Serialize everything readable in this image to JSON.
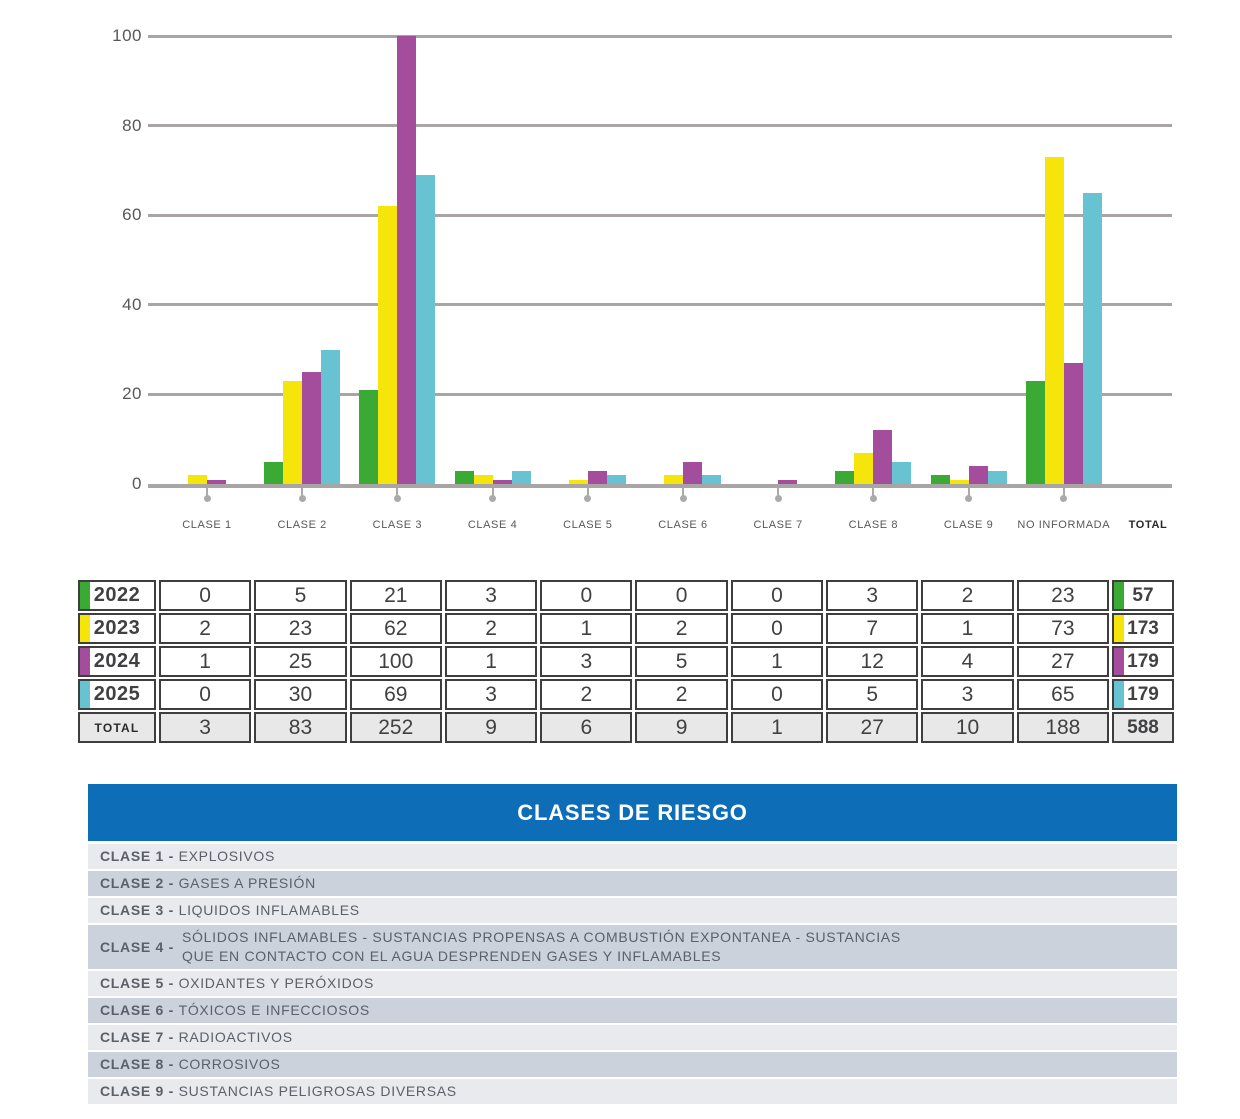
{
  "colors": {
    "green": "#3aaa35",
    "yellow": "#f5e50a",
    "purple": "#a54d9d",
    "cyan": "#67c3d2",
    "grid": "#a8a5a4",
    "banner_blue": "#0d6db6",
    "legend_row_light": "#e9eaee",
    "legend_row_dark": "#ccd2dc"
  },
  "chart_data": {
    "type": "bar",
    "title": "",
    "xlabel": "",
    "ylabel": "",
    "ylim": [
      0,
      100
    ],
    "yticks": [
      0,
      20,
      40,
      60,
      80,
      100
    ],
    "grid": "horizontal",
    "legend_position": "none",
    "categories": [
      "CLASE 1",
      "CLASE 2",
      "CLASE 3",
      "CLASE 4",
      "CLASE 5",
      "CLASE 6",
      "CLASE 7",
      "CLASE 8",
      "CLASE 9",
      "NO INFORMADA",
      "TOTAL"
    ],
    "series": [
      {
        "name": "2022",
        "color_key": "green",
        "values": [
          0,
          5,
          21,
          3,
          0,
          0,
          0,
          3,
          2,
          23
        ],
        "total": 57
      },
      {
        "name": "2023",
        "color_key": "yellow",
        "values": [
          2,
          23,
          62,
          2,
          1,
          2,
          0,
          7,
          1,
          73
        ],
        "total": 173
      },
      {
        "name": "2024",
        "color_key": "purple",
        "values": [
          1,
          25,
          100,
          1,
          3,
          5,
          1,
          12,
          4,
          27
        ],
        "total": 179
      },
      {
        "name": "2025",
        "color_key": "cyan",
        "values": [
          0,
          30,
          69,
          3,
          2,
          2,
          0,
          5,
          3,
          65
        ],
        "total": 179
      }
    ],
    "note": "Bars are drawn for CLASE 1..9 and NO INFORMADA; TOTAL column has no bars"
  },
  "table": {
    "rows": [
      {
        "label": "2022",
        "color_key": "green",
        "values": [
          "0",
          "5",
          "21",
          "3",
          "0",
          "0",
          "0",
          "3",
          "2",
          "23"
        ],
        "total": "57"
      },
      {
        "label": "2023",
        "color_key": "yellow",
        "values": [
          "2",
          "23",
          "62",
          "2",
          "1",
          "2",
          "0",
          "7",
          "1",
          "73"
        ],
        "total": "173"
      },
      {
        "label": "2024",
        "color_key": "purple",
        "values": [
          "1",
          "25",
          "100",
          "1",
          "3",
          "5",
          "1",
          "12",
          "4",
          "27"
        ],
        "total": "179"
      },
      {
        "label": "2025",
        "color_key": "cyan",
        "values": [
          "0",
          "30",
          "69",
          "3",
          "2",
          "2",
          "0",
          "5",
          "3",
          "65"
        ],
        "total": "179"
      },
      {
        "label": "TOTAL",
        "color_key": null,
        "values": [
          "3",
          "83",
          "252",
          "9",
          "6",
          "9",
          "1",
          "27",
          "10",
          "188"
        ],
        "total": "588"
      }
    ]
  },
  "legend": {
    "title": "CLASES DE RIESGO",
    "items": [
      {
        "label": "CLASE 1 -",
        "text": "EXPLOSIVOS"
      },
      {
        "label": "CLASE 2 -",
        "text": "GASES A PRESIÓN"
      },
      {
        "label": "CLASE 3 -",
        "text": "LIQUIDOS INFLAMABLES"
      },
      {
        "label": "CLASE 4 -",
        "lines": [
          "SÓLIDOS INFLAMABLES - SUSTANCIAS PROPENSAS A COMBUSTIÓN EXPONTANEA - SUSTANCIAS",
          "QUE EN CONTACTO CON EL AGUA DESPRENDEN GASES Y INFLAMABLES"
        ]
      },
      {
        "label": "CLASE 5 -",
        "text": "OXIDANTES Y PERÓXIDOS"
      },
      {
        "label": "CLASE 6 -",
        "text": "TÓXICOS E INFECCIOSOS"
      },
      {
        "label": "CLASE 7 -",
        "text": "RADIOACTIVOS"
      },
      {
        "label": "CLASE 8 -",
        "text": "CORROSIVOS"
      },
      {
        "label": "CLASE 9 -",
        "text": "SUSTANCIAS PELIGROSAS DIVERSAS"
      }
    ]
  }
}
